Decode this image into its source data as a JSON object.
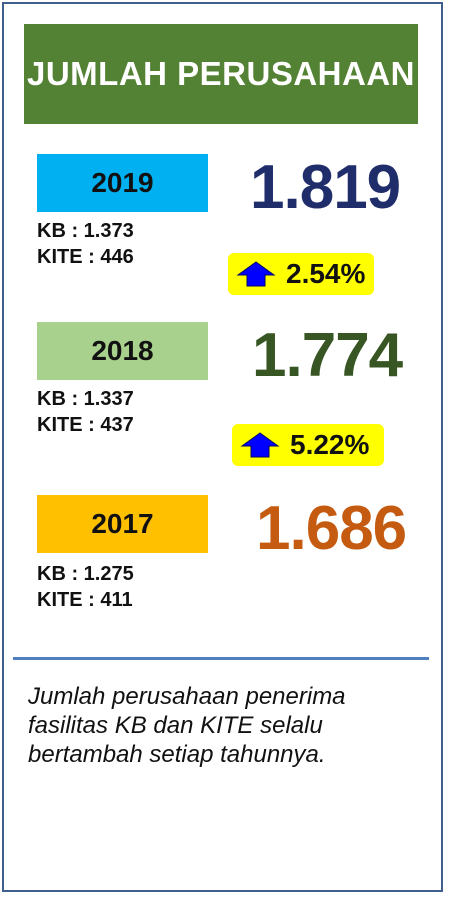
{
  "title": "JUMLAH PERUSAHAAN",
  "colors": {
    "title_bg": "#548235",
    "y2019": "#00b0f0",
    "y2018": "#a9d18e",
    "y2017": "#ffc000",
    "num2019": "#1f2d6b",
    "num2018": "#375623",
    "num2017": "#c55a11",
    "highlight": "#ffff00",
    "arrow": "#0000ff"
  },
  "years": [
    {
      "year": "2019",
      "kb": "KB : 1.373",
      "kite": "KITE : 446",
      "total": "1.819"
    },
    {
      "year": "2018",
      "kb": "KB : 1.337",
      "kite": "KITE : 437",
      "total": "1.774"
    },
    {
      "year": "2017",
      "kb": "KB : 1.275",
      "kite": "KITE : 411",
      "total": "1.686"
    }
  ],
  "growth": [
    {
      "icon": "arrow-up-icon",
      "percent": "2.54%"
    },
    {
      "icon": "arrow-up-icon",
      "percent": "5.22%"
    }
  ],
  "note": "Jumlah perusahaan penerima fasilitas KB dan KITE selalu bertambah setiap tahunnya."
}
